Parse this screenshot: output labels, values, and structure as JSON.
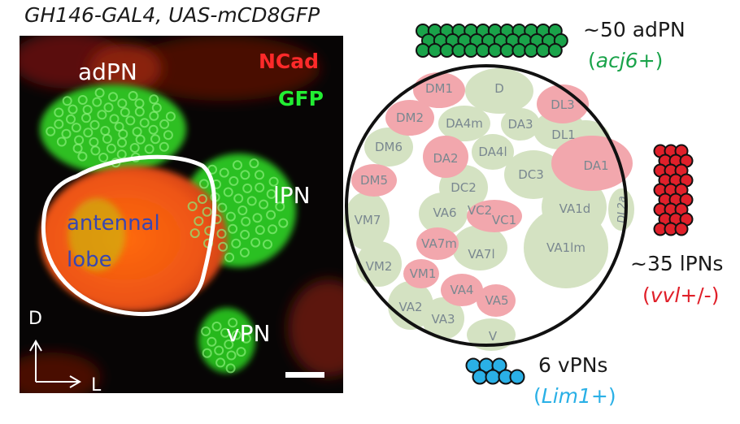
{
  "title": "GH146-GAL4, UAS-mCD8GFP",
  "micrograph": {
    "labels": {
      "adpn": "adPN",
      "ncad": "NCad",
      "gfp": "GFP",
      "lpn": "lPN",
      "antennal": "antennal",
      "lobe": "lobe",
      "vpn": "vPN",
      "axis_d": "D",
      "axis_l": "L"
    },
    "colors": {
      "ncad": "#ff2a2a",
      "gfp": "#22ee33",
      "lobe_text": "#3a46b0"
    }
  },
  "groups": {
    "adpn": {
      "count": "~50 adPN",
      "marker_open": "(",
      "gene": "acj6",
      "marker_close": "+)",
      "color": "#1aa34a"
    },
    "lpn": {
      "count": "~35 lPNs",
      "marker_open": "(",
      "gene": "vvl",
      "marker_close": "+/-)",
      "color": "#e0202a"
    },
    "vpn": {
      "count": "6 vPNs",
      "marker_open": "(",
      "gene": "Lim1",
      "marker_close": "+)",
      "color": "#2ab0e6"
    }
  },
  "glomeruli": {
    "colors": {
      "pink": "#f2a7ad",
      "green": "#d4e2c2",
      "label": "#7a8890"
    },
    "labels": {
      "dm1": "DM1",
      "d": "D",
      "dl3": "DL3",
      "dm2": "DM2",
      "da4m": "DA4m",
      "da3": "DA3",
      "dl1": "DL1",
      "dm6": "DM6",
      "da2": "DA2",
      "da4l": "DA4l",
      "da1": "DA1",
      "dm5": "DM5",
      "dc3": "DC3",
      "dc2": "DC2",
      "dl2a": "DL2a",
      "vm7": "VM7",
      "va6": "VA6",
      "vc2": "VC2",
      "vc1": "VC1",
      "va1d": "VA1d",
      "va7m": "VA7m",
      "va7l": "VA7l",
      "va1lm": "VA1lm",
      "vm2": "VM2",
      "vm1": "VM1",
      "va4": "VA4",
      "va5": "VA5",
      "va2": "VA2",
      "va3": "VA3",
      "v": "V"
    }
  }
}
